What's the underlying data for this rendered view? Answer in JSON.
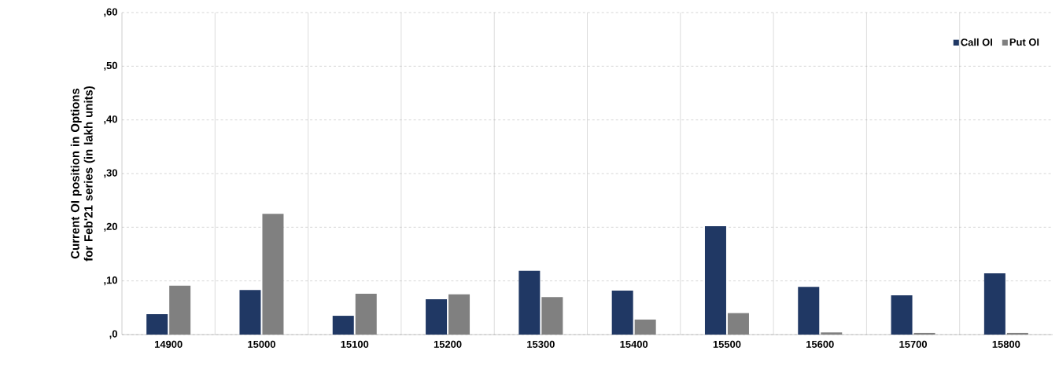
{
  "chart_data": {
    "type": "bar",
    "ylabel": "Current OI position in Options for Feb'21 series (in lakh units)",
    "categories": [
      "14900",
      "15000",
      "15100",
      "15200",
      "15300",
      "15400",
      "15500",
      "15600",
      "15700",
      "15800"
    ],
    "series": [
      {
        "name": "Call OI",
        "color": "#203864",
        "values": [
          3.8,
          8.3,
          3.5,
          6.6,
          11.9,
          8.2,
          20.2,
          8.9,
          7.3,
          11.4
        ]
      },
      {
        "name": "Put OI",
        "color": "#808080",
        "values": [
          9.1,
          22.5,
          7.6,
          7.5,
          7.0,
          2.8,
          4.0,
          0.4,
          0.3,
          0.3
        ]
      }
    ],
    "ylim": [
      0,
      60
    ],
    "yticks": [
      {
        "value": 0,
        "label": ",0"
      },
      {
        "value": 10,
        "label": ",10"
      },
      {
        "value": 20,
        "label": ",20"
      },
      {
        "value": 30,
        "label": ",30"
      },
      {
        "value": 40,
        "label": ",40"
      },
      {
        "value": 50,
        "label": ",50"
      },
      {
        "value": 60,
        "label": ",60"
      }
    ],
    "grid": "y",
    "legend": "top right"
  }
}
